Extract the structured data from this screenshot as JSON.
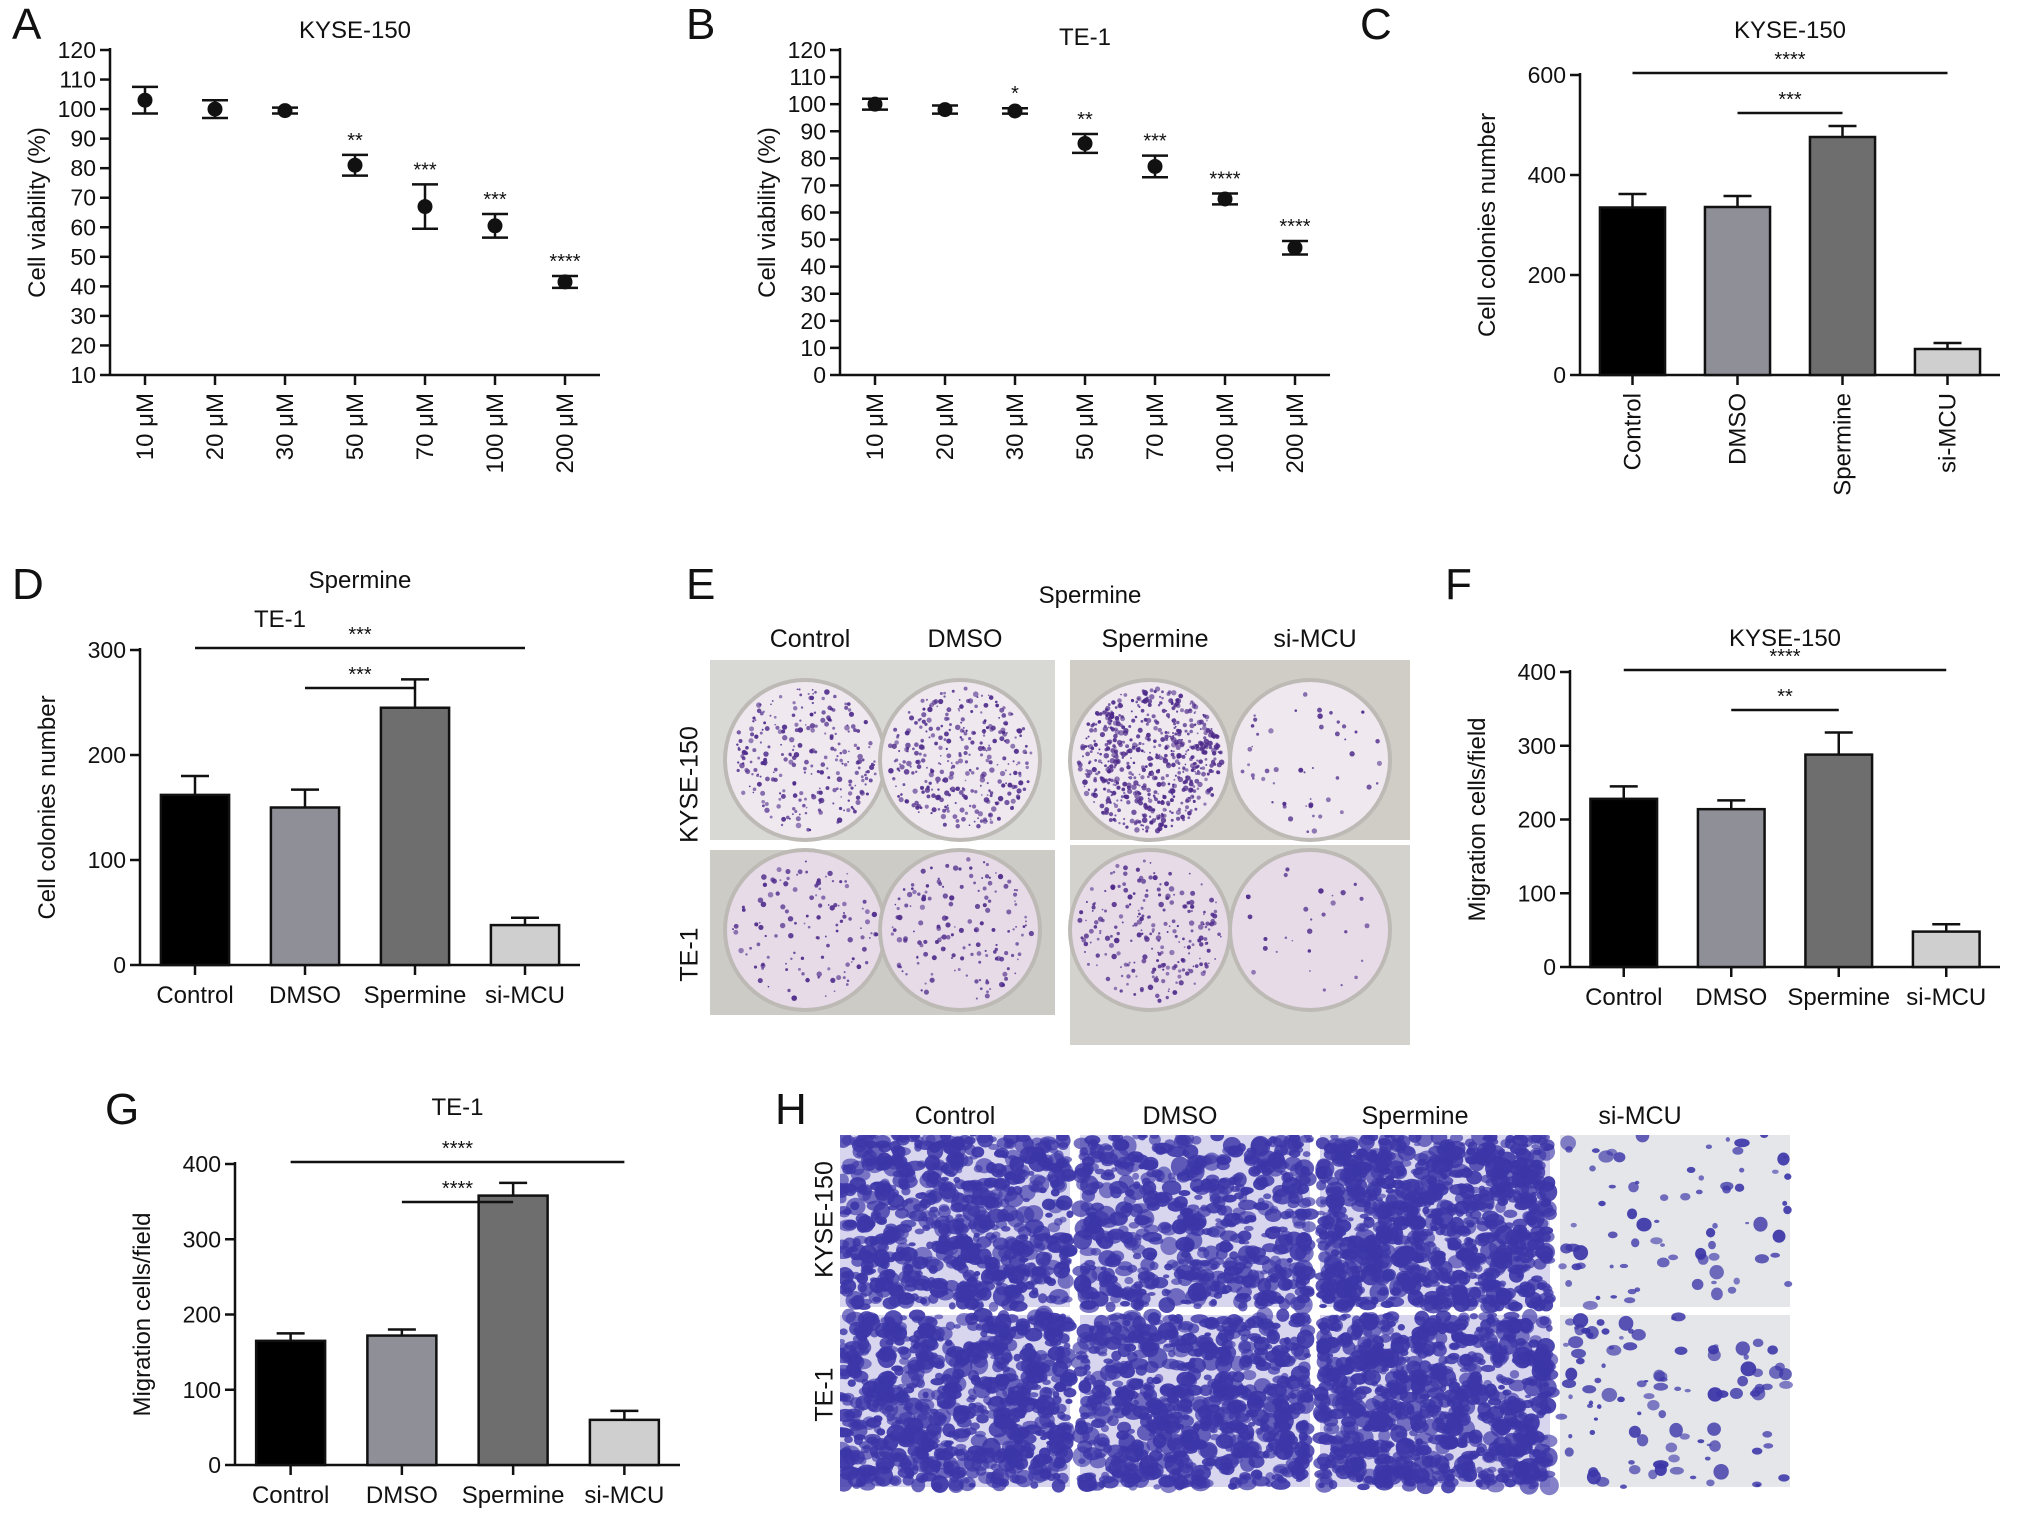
{
  "figure": {
    "panel_letters": [
      "A",
      "B",
      "C",
      "D",
      "E",
      "F",
      "G",
      "H"
    ]
  },
  "chart_data": [
    {
      "id": "A",
      "type": "scatter",
      "title": "KYSE-150",
      "ylabel": "Cell viability (%)",
      "xlabel": "",
      "categories": [
        "10 μM",
        "20 μM",
        "30 μM",
        "50 μM",
        "70 μM",
        "100 μM",
        "200 μM"
      ],
      "values": [
        103,
        100,
        99.5,
        81,
        67,
        60.5,
        41.5
      ],
      "errors": [
        4.5,
        3,
        1,
        3.5,
        7.5,
        4,
        2
      ],
      "sig": [
        "",
        "",
        "",
        "**",
        "***",
        "***",
        "****"
      ],
      "ylim": [
        10,
        120
      ],
      "yticks": [
        10,
        20,
        30,
        40,
        50,
        60,
        70,
        80,
        90,
        100,
        110,
        120
      ],
      "grid": false
    },
    {
      "id": "B",
      "type": "scatter",
      "title": "TE-1",
      "ylabel": "Cell viability (%)",
      "xlabel": "",
      "categories": [
        "10 μM",
        "20 μM",
        "30 μM",
        "50 μM",
        "70 μM",
        "100 μM",
        "200 μM"
      ],
      "values": [
        100,
        98,
        97.5,
        85.5,
        77,
        65,
        47
      ],
      "errors": [
        2,
        1.5,
        1,
        3.5,
        4,
        2,
        2.5
      ],
      "sig": [
        "",
        "",
        "*",
        "**",
        "***",
        "****",
        "****"
      ],
      "ylim": [
        0,
        120
      ],
      "yticks": [
        0,
        10,
        20,
        30,
        40,
        50,
        60,
        70,
        80,
        90,
        100,
        110,
        120
      ],
      "grid": false
    },
    {
      "id": "C",
      "type": "bar",
      "title": "KYSE-150",
      "ylabel": "Cell colonies number",
      "xlabel": "",
      "categories": [
        "Control",
        "DMSO",
        "Spermine",
        "si-MCU"
      ],
      "values": [
        335,
        336,
        476,
        52
      ],
      "errors": [
        27,
        22,
        22,
        12
      ],
      "colors": [
        "#000000",
        "#8f8f98",
        "#6e6e6e",
        "#cfcfcf"
      ],
      "ylim": [
        0,
        600
      ],
      "yticks": [
        0,
        200,
        400,
        600
      ],
      "brackets": [
        {
          "from": 0,
          "to": 3,
          "label": "****"
        },
        {
          "from": 1,
          "to": 2,
          "label": "***"
        }
      ],
      "rotate_labels": true,
      "grid": false
    },
    {
      "id": "D",
      "type": "bar",
      "title": "Spermine",
      "subtitle": "TE-1",
      "ylabel": "Cell colonies number",
      "xlabel": "",
      "categories": [
        "Control",
        "DMSO",
        "Spermine",
        "si-MCU"
      ],
      "values": [
        162,
        150,
        245,
        38
      ],
      "errors": [
        18,
        17,
        27,
        7
      ],
      "colors": [
        "#000000",
        "#8f8f98",
        "#6e6e6e",
        "#cfcfcf"
      ],
      "ylim": [
        0,
        300
      ],
      "yticks": [
        0,
        100,
        200,
        300
      ],
      "brackets": [
        {
          "from": 0,
          "to": 3,
          "label": "***"
        },
        {
          "from": 1,
          "to": 2,
          "label": "***"
        }
      ],
      "rotate_labels": false,
      "grid": false
    },
    {
      "id": "F",
      "type": "bar",
      "title": "KYSE-150",
      "ylabel": "Migration cells/field",
      "xlabel": "",
      "categories": [
        "Control",
        "DMSO",
        "Spermine",
        "si-MCU"
      ],
      "values": [
        228,
        214,
        288,
        48
      ],
      "errors": [
        17,
        12,
        30,
        10
      ],
      "colors": [
        "#000000",
        "#8f8f98",
        "#6e6e6e",
        "#cfcfcf"
      ],
      "ylim": [
        0,
        400
      ],
      "yticks": [
        0,
        100,
        200,
        300,
        400
      ],
      "brackets": [
        {
          "from": 0,
          "to": 3,
          "label": "****"
        },
        {
          "from": 1,
          "to": 2,
          "label": "**"
        }
      ],
      "rotate_labels": false,
      "grid": false
    },
    {
      "id": "G",
      "type": "bar",
      "title": "TE-1",
      "ylabel": "Migration cells/field",
      "xlabel": "",
      "categories": [
        "Control",
        "DMSO",
        "Spermine",
        "si-MCU"
      ],
      "values": [
        165,
        172,
        358,
        60
      ],
      "errors": [
        10,
        8,
        17,
        12
      ],
      "colors": [
        "#000000",
        "#8f8f98",
        "#6e6e6e",
        "#cfcfcf"
      ],
      "ylim": [
        0,
        400
      ],
      "yticks": [
        0,
        100,
        200,
        300,
        400
      ],
      "brackets": [
        {
          "from": 0,
          "to": 3,
          "label": "****"
        },
        {
          "from": 1,
          "to": 2,
          "label": "****"
        }
      ],
      "rotate_labels": false,
      "grid": false
    }
  ],
  "panel_E": {
    "title": "Spermine",
    "columns": [
      "Control",
      "DMSO",
      "Spermine",
      "si-MCU"
    ],
    "rows": [
      "KYSE-150",
      "TE-1"
    ],
    "density": [
      [
        0.35,
        0.45,
        0.9,
        0.05
      ],
      [
        0.15,
        0.2,
        0.3,
        0.02
      ]
    ],
    "dish_color": "#efe8ef",
    "stain_color": "#4d2a8a"
  },
  "panel_H": {
    "columns": [
      "Control",
      "DMSO",
      "Spermine",
      "si-MCU"
    ],
    "rows": [
      "KYSE-150",
      "TE-1"
    ],
    "density": [
      [
        0.7,
        0.6,
        0.95,
        0.05
      ],
      [
        0.75,
        0.7,
        0.85,
        0.08
      ]
    ],
    "stain_color": "#3c36a8"
  }
}
